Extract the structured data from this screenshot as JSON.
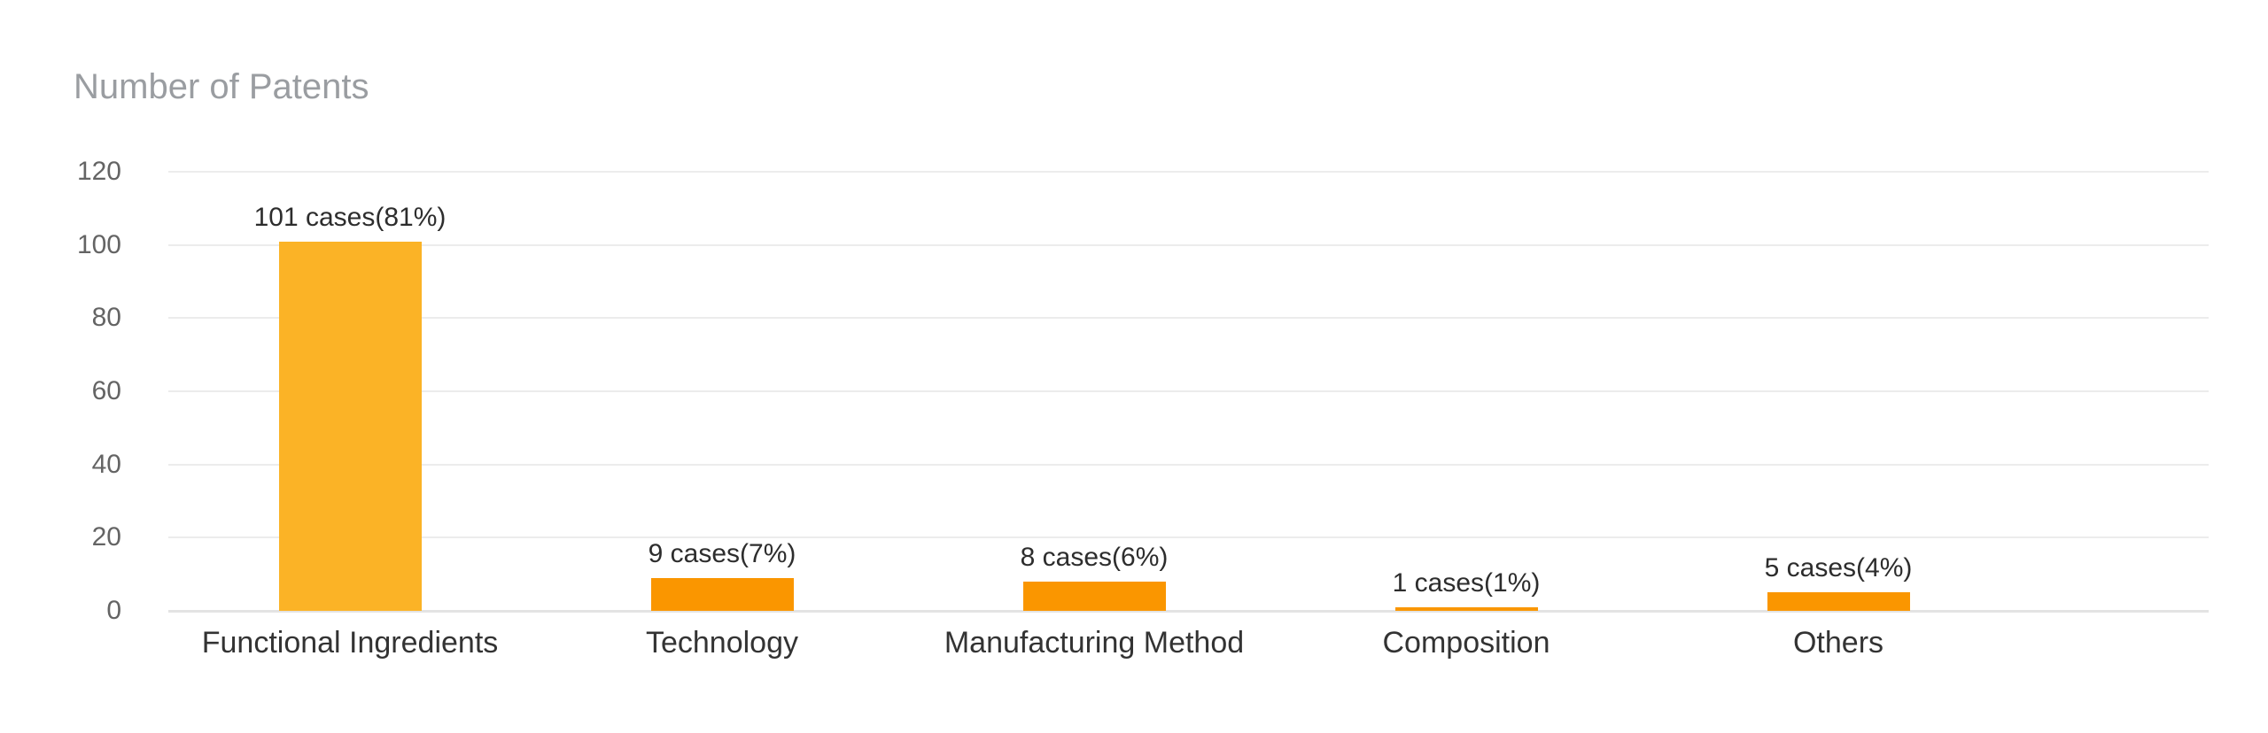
{
  "chart_data": {
    "type": "bar",
    "title": "Number of Patents",
    "categories": [
      "Functional Ingredients",
      "Technology",
      "Manufacturing Method",
      "Composition",
      "Others"
    ],
    "values": [
      101,
      9,
      8,
      1,
      5
    ],
    "value_labels": [
      "101 cases(81%)",
      "9 cases(7%)",
      "8 cases(6%)",
      "1 cases(1%)",
      "5 cases(4%)"
    ],
    "xlabel": "",
    "ylabel": "Number of Patents",
    "ylim": [
      0,
      120
    ],
    "yticks": [
      0,
      20,
      40,
      60,
      80,
      100,
      120
    ],
    "grid": true,
    "legend": "none",
    "bar_colors": [
      "#FBB326",
      "#FA9600",
      "#FA9600",
      "#FA9600",
      "#FA9600"
    ],
    "colors": {
      "title_text": "#9a9da1",
      "tick_text": "#646464",
      "value_label_text": "#2d2d2d",
      "category_text": "#333333",
      "gridline": "#ececec",
      "axis_baseline": "#e3e3e3",
      "background": "#ffffff"
    }
  }
}
